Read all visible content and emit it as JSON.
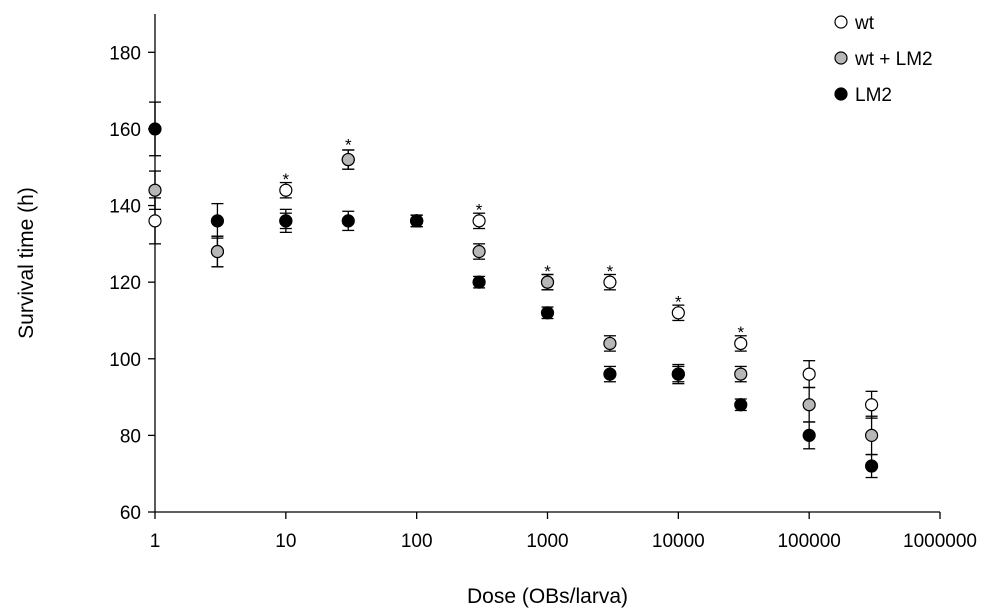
{
  "chart_data": {
    "type": "scatter",
    "title": "",
    "xlabel": "Dose (OBs/larva)",
    "ylabel": "Survival time (h)",
    "x_scale": "log",
    "xlim": [
      1,
      1000000
    ],
    "ylim": [
      60,
      190
    ],
    "x_ticks": [
      1,
      10,
      100,
      1000,
      10000,
      100000,
      1000000
    ],
    "x_tick_labels": [
      "1",
      "10",
      "100",
      "1000",
      "10000",
      "100000",
      "1000000"
    ],
    "y_ticks": [
      60,
      80,
      100,
      120,
      140,
      160,
      180
    ],
    "y_tick_labels": [
      "60",
      "80",
      "100",
      "120",
      "140",
      "160",
      "180"
    ],
    "grid": false,
    "legend_position": "top-right",
    "x": [
      1,
      3,
      10,
      30,
      100,
      300,
      1000,
      3000,
      10000,
      30000,
      100000,
      300000
    ],
    "series": [
      {
        "name": "wt",
        "color": "#ffffff",
        "values": [
          136,
          128,
          144,
          152,
          136,
          136,
          120,
          120,
          112,
          104,
          96,
          88
        ],
        "errors": [
          6,
          4,
          2,
          2.5,
          1.5,
          2,
          2,
          2,
          2,
          2,
          3.5,
          3.5
        ]
      },
      {
        "name": "wt + LM2",
        "color": "#b7b7b7",
        "values": [
          144,
          128,
          136,
          152,
          136,
          128,
          120,
          104,
          96,
          96,
          88,
          80
        ],
        "errors": [
          5,
          4,
          2,
          2.5,
          1.5,
          2,
          2,
          2,
          2,
          2,
          4.5,
          5
        ]
      },
      {
        "name": "LM2",
        "color": "#000000",
        "values": [
          160,
          136,
          136,
          136,
          136,
          120,
          112,
          96,
          96,
          88,
          80,
          72
        ],
        "errors": [
          7,
          4.5,
          3,
          2.5,
          1.5,
          1.5,
          1.5,
          2,
          2.5,
          1.5,
          3.5,
          3
        ]
      }
    ],
    "annotations": [
      {
        "text": "*",
        "x": 10,
        "y": 148
      },
      {
        "text": "*",
        "x": 30,
        "y": 157
      },
      {
        "text": "*",
        "x": 300,
        "y": 140
      },
      {
        "text": "*",
        "x": 1000,
        "y": 124
      },
      {
        "text": "*",
        "x": 3000,
        "y": 124
      },
      {
        "text": "*",
        "x": 10000,
        "y": 116
      },
      {
        "text": "*",
        "x": 30000,
        "y": 108
      }
    ]
  }
}
